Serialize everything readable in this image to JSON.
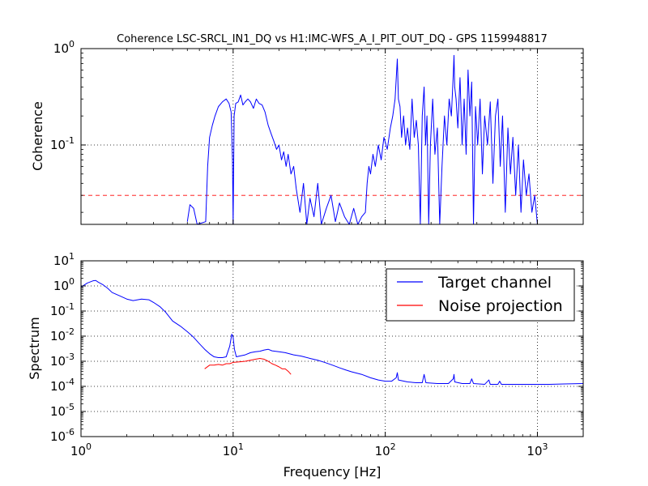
{
  "chart_data": [
    {
      "type": "line",
      "title": "Coherence LSC-SRCL_IN1_DQ vs H1:IMC-WFS_A_I_PIT_OUT_DQ - GPS 1159948817",
      "ylabel": "Coherence",
      "xlabel": "",
      "xscale": "log",
      "yscale": "log",
      "xlim": [
        1,
        2000
      ],
      "ylim": [
        0.015,
        1
      ],
      "grid": true,
      "x_ticks": [
        {
          "base": "10",
          "exp": "0",
          "value": 1
        },
        {
          "base": "10",
          "exp": "1",
          "value": 10
        },
        {
          "base": "10",
          "exp": "2",
          "value": 100
        },
        {
          "base": "10",
          "exp": "3",
          "value": 1000
        }
      ],
      "y_ticks": [
        {
          "base": "10",
          "exp": "-1",
          "value": 0.1
        },
        {
          "base": "10",
          "exp": "0",
          "value": 1
        }
      ],
      "threshold": {
        "value": 0.03,
        "color": "#ff0000",
        "style": "dashed"
      },
      "series": [
        {
          "color": "#0000ff",
          "points": [
            [
              5,
              0.016
            ],
            [
              5.2,
              0.024
            ],
            [
              5.5,
              0.022
            ],
            [
              5.8,
              0.015
            ],
            [
              6.6,
              0.016
            ],
            [
              6.8,
              0.06
            ],
            [
              7.0,
              0.12
            ],
            [
              7.3,
              0.16
            ],
            [
              7.6,
              0.2
            ],
            [
              8.0,
              0.25
            ],
            [
              8.5,
              0.28
            ],
            [
              9.0,
              0.3
            ],
            [
              9.4,
              0.27
            ],
            [
              9.7,
              0.22
            ],
            [
              9.9,
              0.07
            ],
            [
              10.0,
              0.015
            ],
            [
              10.15,
              0.2
            ],
            [
              10.4,
              0.27
            ],
            [
              10.8,
              0.28
            ],
            [
              11.2,
              0.33
            ],
            [
              11.6,
              0.26
            ],
            [
              12.0,
              0.28
            ],
            [
              12.5,
              0.3
            ],
            [
              13.0,
              0.28
            ],
            [
              13.6,
              0.24
            ],
            [
              14.2,
              0.3
            ],
            [
              14.8,
              0.27
            ],
            [
              15.5,
              0.26
            ],
            [
              16.2,
              0.22
            ],
            [
              17.0,
              0.16
            ],
            [
              17.8,
              0.13
            ],
            [
              18.5,
              0.11
            ],
            [
              19.3,
              0.09
            ],
            [
              20.0,
              0.1
            ],
            [
              20.8,
              0.07
            ],
            [
              21.5,
              0.085
            ],
            [
              22.3,
              0.06
            ],
            [
              23.0,
              0.08
            ],
            [
              24.0,
              0.05
            ],
            [
              25.0,
              0.06
            ],
            [
              26.0,
              0.035
            ],
            [
              27.5,
              0.02
            ],
            [
              29.0,
              0.04
            ],
            [
              30.5,
              0.015
            ],
            [
              32,
              0.028
            ],
            [
              34,
              0.018
            ],
            [
              36,
              0.04
            ],
            [
              38,
              0.015
            ],
            [
              41,
              0.022
            ],
            [
              44,
              0.03
            ],
            [
              47,
              0.016
            ],
            [
              50,
              0.025
            ],
            [
              54,
              0.018
            ],
            [
              58,
              0.015
            ],
            [
              62,
              0.022
            ],
            [
              66,
              0.015
            ],
            [
              70,
              0.018
            ],
            [
              74,
              0.02
            ],
            [
              76,
              0.04
            ],
            [
              78,
              0.06
            ],
            [
              80,
              0.05
            ],
            [
              83,
              0.08
            ],
            [
              86,
              0.06
            ],
            [
              90,
              0.1
            ],
            [
              94,
              0.07
            ],
            [
              98,
              0.12
            ],
            [
              103,
              0.09
            ],
            [
              108,
              0.15
            ],
            [
              112,
              0.2
            ],
            [
              116,
              0.3
            ],
            [
              120,
              0.78
            ],
            [
              122,
              0.3
            ],
            [
              125,
              0.25
            ],
            [
              128,
              0.12
            ],
            [
              132,
              0.2
            ],
            [
              136,
              0.1
            ],
            [
              140,
              0.15
            ],
            [
              145,
              0.09
            ],
            [
              150,
              0.3
            ],
            [
              155,
              0.12
            ],
            [
              160,
              0.18
            ],
            [
              165,
              0.1
            ],
            [
              170,
              0.015
            ],
            [
              175,
              0.2
            ],
            [
              180,
              0.4
            ],
            [
              184,
              0.1
            ],
            [
              188,
              0.2
            ],
            [
              193,
              0.015
            ],
            [
              198,
              0.1
            ],
            [
              205,
              0.3
            ],
            [
              212,
              0.08
            ],
            [
              220,
              0.15
            ],
            [
              228,
              0.015
            ],
            [
              236,
              0.06
            ],
            [
              245,
              0.2
            ],
            [
              254,
              0.1
            ],
            [
              263,
              0.3
            ],
            [
              272,
              0.2
            ],
            [
              280,
              0.55
            ],
            [
              283,
              0.85
            ],
            [
              286,
              0.4
            ],
            [
              292,
              0.3
            ],
            [
              300,
              0.15
            ],
            [
              310,
              0.5
            ],
            [
              320,
              0.1
            ],
            [
              330,
              0.3
            ],
            [
              340,
              0.08
            ],
            [
              350,
              0.6
            ],
            [
              360,
              0.2
            ],
            [
              370,
              0.45
            ],
            [
              380,
              0.015
            ],
            [
              392,
              0.25
            ],
            [
              405,
              0.1
            ],
            [
              420,
              0.3
            ],
            [
              435,
              0.05
            ],
            [
              450,
              0.2
            ],
            [
              470,
              0.1
            ],
            [
              490,
              0.28
            ],
            [
              510,
              0.04
            ],
            [
              530,
              0.2
            ],
            [
              550,
              0.3
            ],
            [
              570,
              0.06
            ],
            [
              590,
              0.2
            ],
            [
              615,
              0.02
            ],
            [
              640,
              0.15
            ],
            [
              665,
              0.05
            ],
            [
              690,
              0.12
            ],
            [
              720,
              0.03
            ],
            [
              750,
              0.1
            ],
            [
              780,
              0.02
            ],
            [
              810,
              0.07
            ],
            [
              845,
              0.03
            ],
            [
              880,
              0.05
            ],
            [
              920,
              0.02
            ],
            [
              960,
              0.03
            ],
            [
              1000,
              0.015
            ]
          ]
        }
      ]
    },
    {
      "type": "line",
      "title": "",
      "ylabel": "Spectrum",
      "xlabel": "Frequency [Hz]",
      "xscale": "log",
      "yscale": "log",
      "xlim": [
        1,
        2000
      ],
      "ylim": [
        1e-06,
        10
      ],
      "grid": true,
      "x_ticks": [
        {
          "base": "10",
          "exp": "0",
          "value": 1
        },
        {
          "base": "10",
          "exp": "1",
          "value": 10
        },
        {
          "base": "10",
          "exp": "2",
          "value": 100
        },
        {
          "base": "10",
          "exp": "3",
          "value": 1000
        }
      ],
      "y_ticks": [
        {
          "base": "10",
          "exp": "-6",
          "value": 1e-06
        },
        {
          "base": "10",
          "exp": "-5",
          "value": 1e-05
        },
        {
          "base": "10",
          "exp": "-4",
          "value": 0.0001
        },
        {
          "base": "10",
          "exp": "-3",
          "value": 0.001
        },
        {
          "base": "10",
          "exp": "-2",
          "value": 0.01
        },
        {
          "base": "10",
          "exp": "-1",
          "value": 0.1
        },
        {
          "base": "10",
          "exp": "0",
          "value": 1
        },
        {
          "base": "10",
          "exp": "1",
          "value": 10
        }
      ],
      "legend": {
        "placement": "top-right",
        "entries": [
          {
            "name": "Target channel",
            "color": "#0000ff"
          },
          {
            "name": "Noise projection",
            "color": "#ff0000"
          }
        ]
      },
      "series": [
        {
          "name": "Target channel",
          "color": "#0000ff",
          "points": [
            [
              1.0,
              0.9
            ],
            [
              1.1,
              1.3
            ],
            [
              1.2,
              1.6
            ],
            [
              1.25,
              1.65
            ],
            [
              1.3,
              1.4
            ],
            [
              1.4,
              1.1
            ],
            [
              1.5,
              0.8
            ],
            [
              1.6,
              0.55
            ],
            [
              1.8,
              0.4
            ],
            [
              2.0,
              0.3
            ],
            [
              2.2,
              0.26
            ],
            [
              2.5,
              0.3
            ],
            [
              2.8,
              0.28
            ],
            [
              3.0,
              0.22
            ],
            [
              3.3,
              0.15
            ],
            [
              3.6,
              0.09
            ],
            [
              4.0,
              0.04
            ],
            [
              4.5,
              0.025
            ],
            [
              5.0,
              0.015
            ],
            [
              5.5,
              0.009
            ],
            [
              6.0,
              0.005
            ],
            [
              6.5,
              0.003
            ],
            [
              7.0,
              0.002
            ],
            [
              7.5,
              0.0015
            ],
            [
              8.0,
              0.0014
            ],
            [
              8.5,
              0.0014
            ],
            [
              9.0,
              0.0015
            ],
            [
              9.5,
              0.004
            ],
            [
              9.8,
              0.012
            ],
            [
              10.0,
              0.009
            ],
            [
              10.2,
              0.003
            ],
            [
              10.5,
              0.0015
            ],
            [
              11,
              0.0016
            ],
            [
              12,
              0.0018
            ],
            [
              13,
              0.0022
            ],
            [
              14,
              0.0024
            ],
            [
              15,
              0.0025
            ],
            [
              16,
              0.0028
            ],
            [
              17,
              0.003
            ],
            [
              18,
              0.0026
            ],
            [
              20,
              0.0024
            ],
            [
              22,
              0.0022
            ],
            [
              25,
              0.0018
            ],
            [
              28,
              0.0016
            ],
            [
              32,
              0.0013
            ],
            [
              36,
              0.0011
            ],
            [
              40,
              0.0009
            ],
            [
              45,
              0.0007
            ],
            [
              50,
              0.00055
            ],
            [
              55,
              0.00045
            ],
            [
              60,
              0.00038
            ],
            [
              70,
              0.0003
            ],
            [
              80,
              0.00022
            ],
            [
              90,
              0.00018
            ],
            [
              100,
              0.00016
            ],
            [
              110,
              0.00016
            ],
            [
              118,
              0.00022
            ],
            [
              120,
              0.00035
            ],
            [
              122,
              0.00018
            ],
            [
              140,
              0.00015
            ],
            [
              160,
              0.00014
            ],
            [
              175,
              0.00014
            ],
            [
              180,
              0.0003
            ],
            [
              185,
              0.00014
            ],
            [
              220,
              0.00013
            ],
            [
              260,
              0.00013
            ],
            [
              280,
              0.0002
            ],
            [
              283,
              0.0003
            ],
            [
              286,
              0.00015
            ],
            [
              320,
              0.00013
            ],
            [
              360,
              0.00013
            ],
            [
              370,
              0.0002
            ],
            [
              380,
              0.00013
            ],
            [
              450,
              0.00012
            ],
            [
              480,
              0.00018
            ],
            [
              490,
              0.00012
            ],
            [
              550,
              0.00012
            ],
            [
              565,
              0.00016
            ],
            [
              580,
              0.00012
            ],
            [
              700,
              0.00012
            ],
            [
              900,
              0.00012
            ],
            [
              1200,
              0.00012
            ],
            [
              1500,
              0.000125
            ],
            [
              2000,
              0.00013
            ]
          ]
        },
        {
          "name": "Noise projection",
          "color": "#ff0000",
          "points": [
            [
              6.5,
              0.0005
            ],
            [
              7.0,
              0.0007
            ],
            [
              7.5,
              0.0007
            ],
            [
              8.0,
              0.00075
            ],
            [
              8.5,
              0.0007
            ],
            [
              9.0,
              0.0008
            ],
            [
              9.5,
              0.0008
            ],
            [
              10,
              0.0009
            ],
            [
              11,
              0.00095
            ],
            [
              12,
              0.001
            ],
            [
              13,
              0.0011
            ],
            [
              14,
              0.0012
            ],
            [
              15,
              0.0013
            ],
            [
              16,
              0.0012
            ],
            [
              17,
              0.001
            ],
            [
              18,
              0.0008
            ],
            [
              19,
              0.0007
            ],
            [
              20,
              0.0006
            ],
            [
              21,
              0.0005
            ],
            [
              22,
              0.0005
            ],
            [
              23,
              0.0004
            ],
            [
              24,
              0.0003
            ]
          ]
        }
      ]
    }
  ]
}
